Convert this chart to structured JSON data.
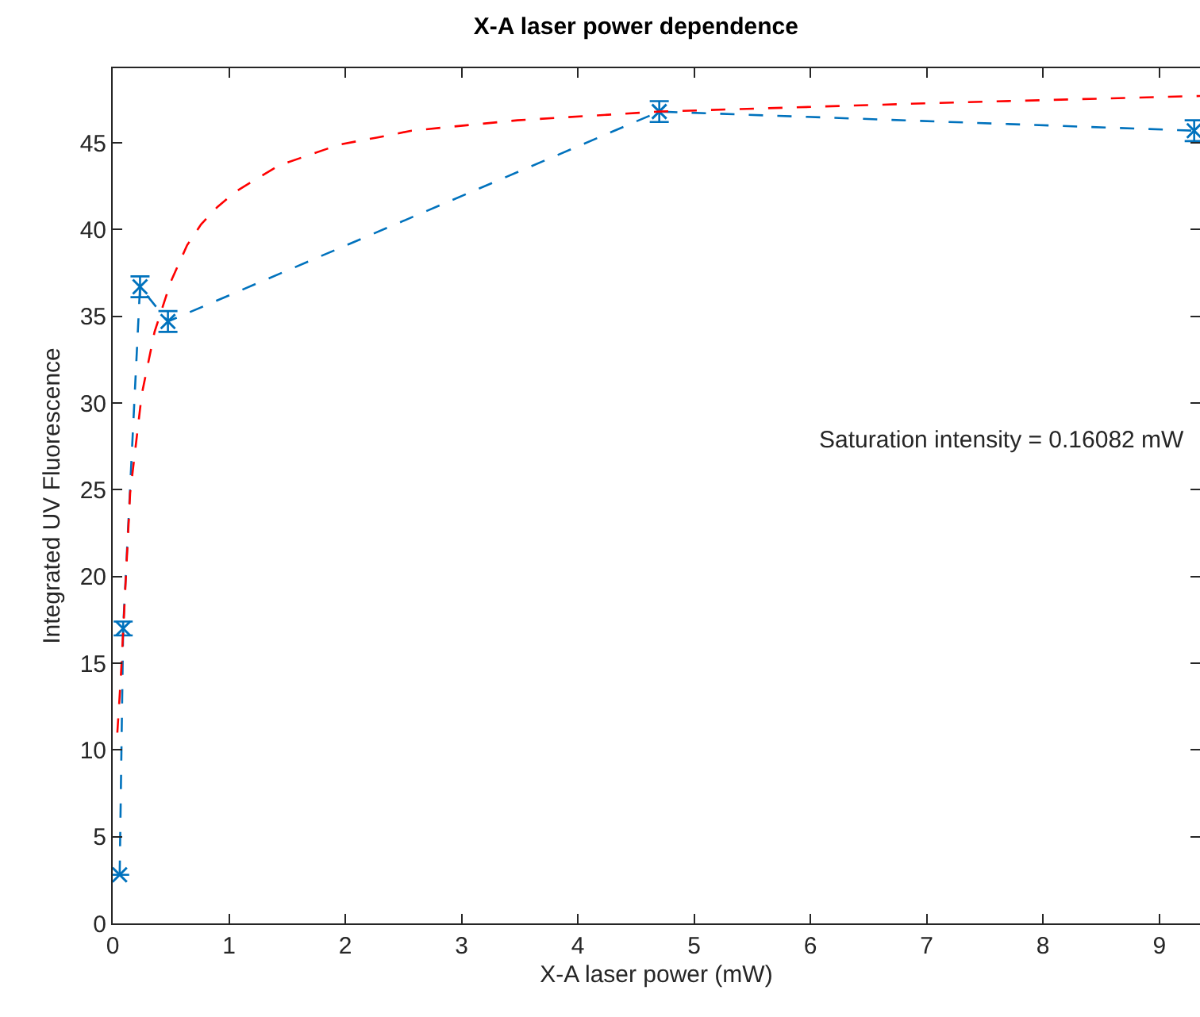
{
  "chart_data": {
    "type": "line",
    "title": "X-A laser power dependence",
    "xlabel": "X-A laser power (mW)",
    "ylabel": "Integrated UV Fluorescence",
    "series": [
      {
        "color": "#0072bd",
        "marker": "cross",
        "line_style": "dashed",
        "x": [
          0.06,
          0.09,
          0.235,
          0.475,
          4.7,
          9.3
        ],
        "values": [
          2.8,
          17.0,
          36.7,
          34.7,
          46.8,
          45.7
        ],
        "errors": [
          null,
          0.4,
          0.6,
          0.6,
          0.6,
          0.6
        ]
      },
      {
        "color": "#ff0000",
        "marker": "none",
        "line_style": "dashed",
        "x": [
          0.04,
          0.07,
          0.15,
          0.25,
          0.36,
          0.5,
          0.64,
          0.76,
          0.9,
          1.06,
          1.43,
          1.95,
          2.27,
          2.57,
          3.48,
          4.7,
          7.1,
          9.35
        ],
        "values": [
          11,
          14.2,
          24.8,
          30.5,
          34.1,
          37.0,
          39.1,
          40.3,
          41.3,
          42.2,
          43.7,
          44.9,
          45.3,
          45.7,
          46.3,
          46.8,
          47.3,
          47.7
        ]
      }
    ],
    "annotations": [
      "Saturation intensity = 0.16082 mW"
    ],
    "xlim": [
      0,
      9.35
    ],
    "ylim": [
      0,
      49.3
    ],
    "xticks": [
      0,
      1,
      2,
      3,
      4,
      5,
      6,
      7,
      8,
      9
    ],
    "yticks": [
      0,
      5,
      10,
      15,
      20,
      25,
      30,
      35,
      40,
      45
    ],
    "grid": false,
    "legend": false
  }
}
